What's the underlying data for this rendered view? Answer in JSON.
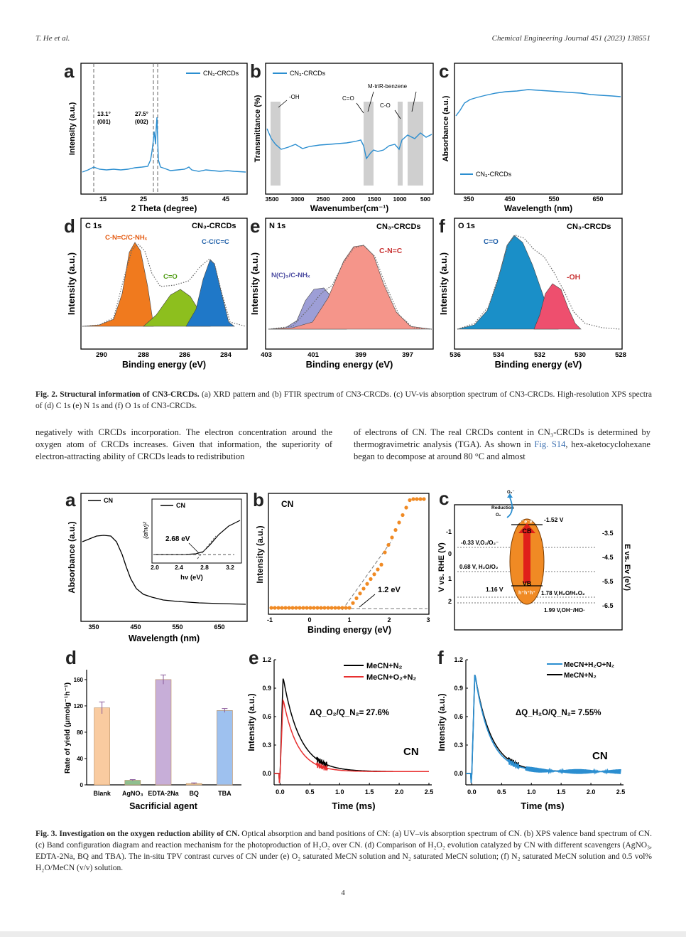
{
  "header": {
    "left": "T. He et al.",
    "right": "Chemical Engineering Journal 451 (2023) 138551"
  },
  "fig2": {
    "a": {
      "label": "a",
      "legend": "CN₃-CRCDs",
      "xlabel": "2 Theta (degree)",
      "ylabel": "Intensity (a.u.)",
      "xticks": [
        "15",
        "25",
        "35",
        "45"
      ],
      "ann1": "13.1°",
      "ann1b": "(001)",
      "ann2": "27.5°",
      "ann2b": "(002)"
    },
    "b": {
      "label": "b",
      "legend": "CN₃-CRCDs",
      "xlabel": "Wavenumber(cm⁻¹)",
      "ylabel": "Transmittance (%)",
      "xticks": [
        "3500",
        "3000",
        "2500",
        "2000",
        "1500",
        "1000",
        "500"
      ],
      "ann_oh": "-OH",
      "ann_co1": "C=O",
      "ann_mtri": "M-triR-benzene",
      "ann_co2": "C-O"
    },
    "c": {
      "label": "c",
      "legend": "CN₃-CRCDs",
      "xlabel": "Wavelength (nm)",
      "ylabel": "Absorbance (a.u.)",
      "xticks": [
        "350",
        "450",
        "550",
        "650"
      ]
    },
    "d": {
      "label": "d",
      "title": "C 1s",
      "sample": "CN₃-CRCDs",
      "xlabel": "Binding energy (eV)",
      "ylabel": "Intensity (a.u.)",
      "xticks": [
        "290",
        "288",
        "286",
        "284"
      ],
      "peak1": "C-N=C/C-NHₓ",
      "peak2": "C=O",
      "peak3": "C-C/C=C"
    },
    "e": {
      "label": "e",
      "title": "N 1s",
      "sample": "CN₃-CRCDs",
      "xlabel": "Binding energy (eV)",
      "ylabel": "Intensity (a.u.)",
      "xticks": [
        "403",
        "401",
        "399",
        "397"
      ],
      "peak1": "N(C)₃/C-NHₓ",
      "peak2": "C-N=C"
    },
    "f": {
      "label": "f",
      "title": "O 1s",
      "sample": "CN₃-CRCDs",
      "xlabel": "Binding energy (eV)",
      "ylabel": "Intensity (a.u.)",
      "xticks": [
        "536",
        "534",
        "532",
        "530",
        "528"
      ],
      "peak1": "C=O",
      "peak2": "-OH"
    },
    "caption_bold": "Fig. 2. Structural information of CN3-CRCDs.",
    "caption_rest": " (a) XRD pattern and (b) FTIR spectrum of CN3-CRCDs. (c) UV-vis absorption spectrum of CN3-CRCDs. High-resolution XPS spectra of (d) C 1s (e) N 1s and (f) O 1s of CN3-CRCDs."
  },
  "body": {
    "left": "negatively with CRCDs incorporation. The electron concentration around the oxygen atom of CRCDs increases. Given that information, the superiority of electron-attracting ability of CRCDs leads to redistribution",
    "right_1": "of electrons of CN. The real CRCDs content in CN₃-CRCDs is determined by thermogravimetric analysis (TGA). As shown in ",
    "right_link": "Fig. S14",
    "right_2": ", hex-aketocyclohexane began to decompose at around 80 °C and almost"
  },
  "fig3": {
    "a": {
      "label": "a",
      "legend": "CN",
      "inset_legend": "CN",
      "inset_ylabel": "(αhν)²",
      "inset_xlabel": "hν (eV)",
      "inset_xticks": [
        "2.0",
        "2.4",
        "2.8",
        "3.2"
      ],
      "inset_ann": "2.68 eV",
      "xlabel": "Wavelength (nm)",
      "ylabel": "Absorbance (a.u.)",
      "xticks": [
        "350",
        "450",
        "550",
        "650"
      ]
    },
    "b": {
      "label": "b",
      "title": "CN",
      "xlabel": "Binding energy (eV)",
      "ylabel": "Intensity (a.u.)",
      "xticks": [
        "-1",
        "0",
        "1",
        "2",
        "3"
      ],
      "ann": "1.2 eV"
    },
    "c": {
      "label": "c",
      "ylabel_left": "V vs. RHE (V)",
      "ylabel_right": "E vs. Ev (eV)",
      "left_ticks": [
        "-1",
        "0",
        "1",
        "2"
      ],
      "right_ticks": [
        "-3.5",
        "-4.5",
        "-5.5",
        "-6.5"
      ],
      "cb": "CB",
      "vb": "VB",
      "cb_val": "-1.52 V",
      "vb_val": "1.16 V",
      "lvl1": "-0.33 V,O₂/O₂⁻",
      "lvl2": "0.68 V, H₂O/O₂",
      "lvl3": "1.78 V,H₂O/H₂O₂",
      "lvl4": "1.99 V,OH⁻/HO·",
      "reduction": "Reduction",
      "o2": "O₂",
      "o2m": "O₂⁻",
      "electrons": "e⁻e⁻e⁻",
      "holes": "h⁺h⁺h⁺"
    },
    "d": {
      "label": "d",
      "xlabel": "Sacrificial agent",
      "ylabel": "Rate of yield (μmolg⁻¹h⁻¹)",
      "yticks": [
        "0",
        "40",
        "80",
        "120",
        "160"
      ]
    },
    "e": {
      "label": "e",
      "xlabel": "Time (ms)",
      "ylabel": "Intensity (a.u.)",
      "sample": "CN",
      "xticks": [
        "0.0",
        "0.5",
        "1.0",
        "1.5",
        "2.0",
        "2.5"
      ],
      "yticks": [
        "0.0",
        "0.3",
        "0.6",
        "0.9",
        "1.2"
      ],
      "leg1": "MeCN+N₂",
      "leg2": "MeCN+O₂+N₂",
      "ann": "ΔQ_O₂/Q_N₂= 27.6%"
    },
    "f": {
      "label": "f",
      "xlabel": "Time (ms)",
      "ylabel": "Intensity (a.u.)",
      "sample": "CN",
      "xticks": [
        "0.0",
        "0.5",
        "1.0",
        "1.5",
        "2.0",
        "2.5"
      ],
      "yticks": [
        "0.0",
        "0.3",
        "0.6",
        "0.9",
        "1.2"
      ],
      "leg1": "MeCN+H₂O+N₂",
      "leg2": "MeCN+N₂",
      "ann": "ΔQ_H₂O/Q_N₂= 7.55%"
    },
    "caption_bold": "Fig. 3. Investigation on the oxygen reduction ability of CN.",
    "caption_rest": " Optical absorption and band positions of CN: (a) UV–vis absorption spectrum of CN. (b) XPS valence band spectrum of CN. (c) Band configuration diagram and reaction mechanism for the photoproduction of H₂O₂ over CN. (d) Comparison of H₂O₂ evolution catalyzed by CN with different scavengers (AgNO₃, EDTA-2Na, BQ and TBA). The in-situ TPV contrast curves of CN under (e) O₂ saturated MeCN solution and N₂ saturated MeCN solution; (f) N₂ saturated MeCN solution and 0.5 vol% H₂O/MeCN (v/v) solution."
  },
  "page_number": "4",
  "chart_data": [
    {
      "type": "bar",
      "panel": "fig3-d",
      "categories": [
        "Blank",
        "AgNO₃",
        "EDTA-2Na",
        "BQ",
        "TBA"
      ],
      "values": [
        117,
        7,
        160,
        2,
        113
      ],
      "errors": [
        9,
        1,
        7,
        1,
        3
      ],
      "colors": [
        "#f9cba0",
        "#8fbf8f",
        "#c7aed8",
        "#e6c39a",
        "#9ec1ef"
      ],
      "xlabel": "Sacrificial agent",
      "ylabel": "Rate of yield (μmolg⁻¹h⁻¹)",
      "ylim": [
        0,
        175
      ]
    },
    {
      "type": "line",
      "panel": "fig3-e",
      "xlabel": "Time (ms)",
      "ylabel": "Intensity (a.u.)",
      "xlim": [
        -0.1,
        2.5
      ],
      "ylim": [
        -0.12,
        1.2
      ],
      "series": [
        {
          "name": "MeCN+N₂",
          "peak": 1.0,
          "peak_t": 0.05
        },
        {
          "name": "MeCN+O₂+N₂",
          "peak": 0.77,
          "peak_t": 0.05
        }
      ]
    },
    {
      "type": "line",
      "panel": "fig3-f",
      "xlabel": "Time (ms)",
      "ylabel": "Intensity (a.u.)",
      "xlim": [
        -0.1,
        2.5
      ],
      "ylim": [
        -0.12,
        1.2
      ],
      "series": [
        {
          "name": "MeCN+H₂O+N₂",
          "peak": 1.04,
          "peak_t": 0.05
        },
        {
          "name": "MeCN+N₂",
          "peak": 1.04,
          "peak_t": 0.05
        }
      ]
    }
  ]
}
